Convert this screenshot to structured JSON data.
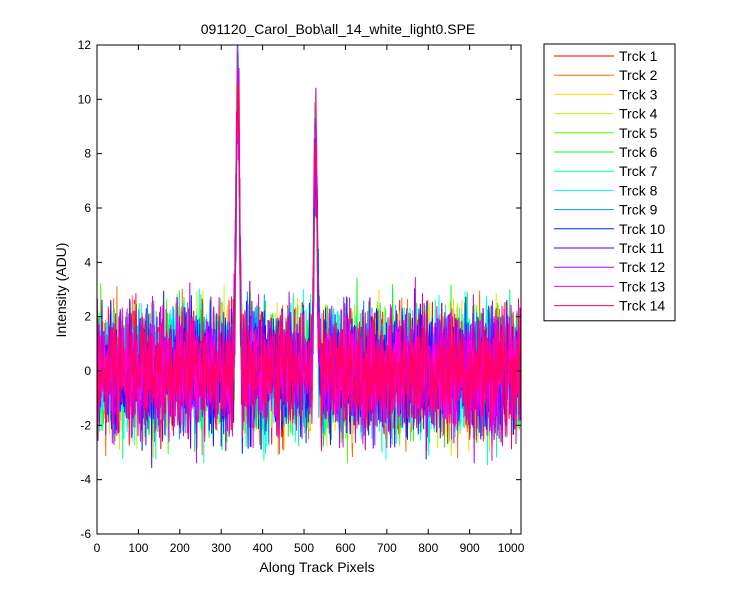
{
  "chart_data": {
    "type": "line",
    "title": "091120_Carol_Bob\\all_14_white_light0.SPE",
    "xlabel": "Along Track Pixels",
    "ylabel": "Intensity (ADU)",
    "xlim": [
      0,
      1024
    ],
    "ylim": [
      -6,
      12
    ],
    "xticks": [
      0,
      100,
      200,
      300,
      400,
      500,
      600,
      700,
      800,
      900,
      1000
    ],
    "yticks": [
      -6,
      -4,
      -2,
      0,
      2,
      4,
      6,
      8,
      10,
      12
    ],
    "grid": false,
    "legend_position": "outside-right",
    "noise_std": 1.1,
    "peaks": [
      {
        "x": 340,
        "height": 11.5,
        "width": 4
      },
      {
        "x": 528,
        "height": 9.2,
        "width": 4
      }
    ],
    "series": [
      {
        "name": "Trck 1",
        "color": "#ff0000"
      },
      {
        "name": "Trck 2",
        "color": "#ff6d00"
      },
      {
        "name": "Trck 3",
        "color": "#ffd800"
      },
      {
        "name": "Trck 4",
        "color": "#b6ff00"
      },
      {
        "name": "Trck 5",
        "color": "#49ff00"
      },
      {
        "name": "Trck 6",
        "color": "#00ff24"
      },
      {
        "name": "Trck 7",
        "color": "#00ff92"
      },
      {
        "name": "Trck 8",
        "color": "#00ffff"
      },
      {
        "name": "Trck 9",
        "color": "#0092ff"
      },
      {
        "name": "Trck 10",
        "color": "#0024ff"
      },
      {
        "name": "Trck 11",
        "color": "#4900ff"
      },
      {
        "name": "Trck 12",
        "color": "#b600ff"
      },
      {
        "name": "Trck 13",
        "color": "#ff00db"
      },
      {
        "name": "Trck 14",
        "color": "#ff006d"
      }
    ]
  }
}
